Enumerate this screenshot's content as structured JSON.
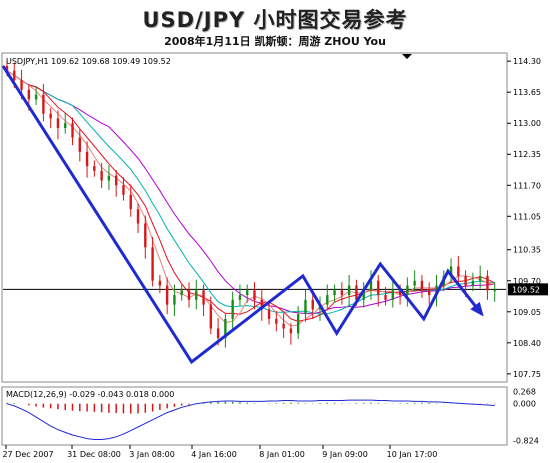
{
  "header": {
    "title": "USD/JPY 小时图交易参考",
    "subtitle": "2008年1月11日   凯斯顿：周游 ZHOU You"
  },
  "chart_data": [
    {
      "type": "candlestick",
      "label": "USDJPY,H1  109.62 109.68 109.49 109.52",
      "y_ticks": [
        "114.30",
        "113.65",
        "113.00",
        "112.35",
        "111.70",
        "111.05",
        "110.35",
        "109.70",
        "109.05",
        "108.40",
        "107.75"
      ],
      "ylim": [
        107.6,
        114.45
      ],
      "current_price": "109.52",
      "current_price_value": 109.52,
      "x_ticks": [
        "27 Dec 2007",
        "31 Dec 08:00",
        "3 Jan 08:00",
        "4 Jan 16:00",
        "8 Jan 01:00",
        "9 Jan 09:00",
        "10 Jan 17:00"
      ],
      "price_path": [
        114.1,
        113.9,
        113.7,
        113.5,
        113.6,
        113.2,
        113.1,
        112.9,
        113.0,
        112.7,
        112.4,
        112.1,
        112.0,
        111.8,
        111.9,
        111.7,
        111.5,
        111.2,
        110.9,
        110.4,
        109.7,
        109.6,
        109.2,
        109.4,
        109.5,
        109.3,
        109.5,
        109.2,
        108.7,
        108.5,
        108.9,
        109.3,
        109.4,
        109.5,
        109.3,
        109.1,
        108.9,
        108.8,
        108.7,
        108.6,
        109.0,
        109.3,
        109.1,
        109.2,
        109.4,
        109.5,
        109.4,
        109.6,
        109.3,
        109.5,
        109.7,
        109.4,
        109.3,
        109.5,
        109.4,
        109.6,
        109.7,
        109.5,
        109.4,
        109.6,
        109.8,
        110.0,
        109.8,
        109.6,
        109.7,
        109.8,
        109.5,
        109.5
      ],
      "wave_line": [
        [
          0,
          114.2
        ],
        [
          39,
          108.0
        ],
        [
          62,
          109.8
        ],
        [
          69,
          108.6
        ],
        [
          78,
          110.05
        ],
        [
          87,
          108.9
        ],
        [
          92,
          109.9
        ],
        [
          99,
          109.0
        ]
      ],
      "moving_average_colors": [
        "#b100d6",
        "#00b2b2",
        "#e0141e",
        "#f08080"
      ]
    },
    {
      "type": "histogram",
      "label": "MACD(12,26,9) -0.029 -0.043 0.018 0.000",
      "y_ticks": [
        "0.268",
        "0.000",
        "-0.824"
      ],
      "ylim": [
        -0.9,
        0.35
      ],
      "histogram": [
        0.05,
        0.04,
        0.0,
        -0.1,
        -0.18,
        -0.25,
        -0.3,
        -0.35,
        -0.4,
        -0.45,
        -0.48,
        -0.5,
        -0.52,
        -0.55,
        -0.58,
        -0.6,
        -0.62,
        -0.63,
        -0.62,
        -0.58,
        -0.5,
        -0.4,
        -0.3,
        -0.2,
        -0.12,
        -0.06,
        0.0,
        0.05,
        0.08,
        0.1,
        0.12,
        0.11,
        0.09,
        0.06,
        0.03,
        0.0,
        0.02,
        0.04,
        0.06,
        0.07,
        0.05,
        0.03,
        0.02,
        0.04,
        0.06,
        0.05,
        0.03,
        0.02,
        0.04,
        0.05,
        0.06,
        0.04,
        0.02,
        0.01,
        0.03,
        0.04,
        0.05,
        0.06,
        0.05,
        0.03,
        0.02,
        0.01,
        0.0,
        -0.01,
        -0.02,
        -0.02,
        -0.02,
        -0.03
      ],
      "signal": [
        0.0,
        -0.05,
        -0.12,
        -0.2,
        -0.3,
        -0.4,
        -0.5,
        -0.58,
        -0.64,
        -0.7,
        -0.74,
        -0.78,
        -0.8,
        -0.8,
        -0.78,
        -0.74,
        -0.68,
        -0.6,
        -0.52,
        -0.44,
        -0.36,
        -0.28,
        -0.2,
        -0.14,
        -0.08,
        -0.04,
        0.0,
        0.02,
        0.04,
        0.05,
        0.06,
        0.06,
        0.05,
        0.05,
        0.05,
        0.05,
        0.06,
        0.06,
        0.07,
        0.07,
        0.06,
        0.06,
        0.06,
        0.07,
        0.07,
        0.07,
        0.07,
        0.08,
        0.08,
        0.08,
        0.08,
        0.07,
        0.07,
        0.06,
        0.06,
        0.06,
        0.05,
        0.05,
        0.04,
        0.04,
        0.03,
        0.02,
        0.01,
        0.0,
        -0.01,
        -0.02,
        -0.03,
        -0.04
      ]
    }
  ]
}
